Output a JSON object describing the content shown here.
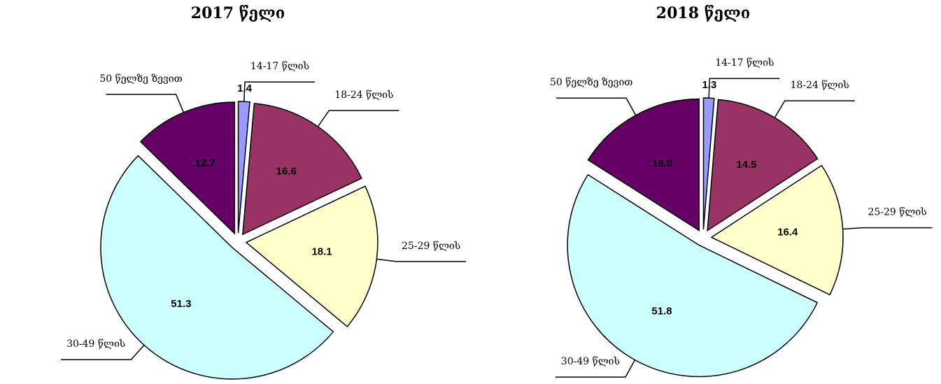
{
  "chart_data": [
    {
      "type": "pie",
      "title": "2017 წელი",
      "categories": [
        "14-17 წლის",
        "18-24 წლის",
        "25-29 წლის",
        "30-49 წლის",
        "50 წელზე ზევით"
      ],
      "values": [
        1.4,
        16.6,
        18.1,
        51.3,
        12.7
      ],
      "colors": [
        "#9999ff",
        "#993366",
        "#ffffcc",
        "#ccffff",
        "#660066"
      ]
    },
    {
      "type": "pie",
      "title": "2018 წელი",
      "categories": [
        "14-17 წლის",
        "18-24 წლის",
        "25-29 წლის",
        "30-49 წლის",
        "50 წელზე ზევით"
      ],
      "values": [
        1.3,
        14.5,
        16.4,
        51.8,
        16.0
      ],
      "value_labels": [
        "1.3",
        "14.5",
        "16.4",
        "51.8",
        "16.0"
      ],
      "colors": [
        "#9999ff",
        "#993366",
        "#ffffcc",
        "#ccffff",
        "#660066"
      ]
    }
  ]
}
